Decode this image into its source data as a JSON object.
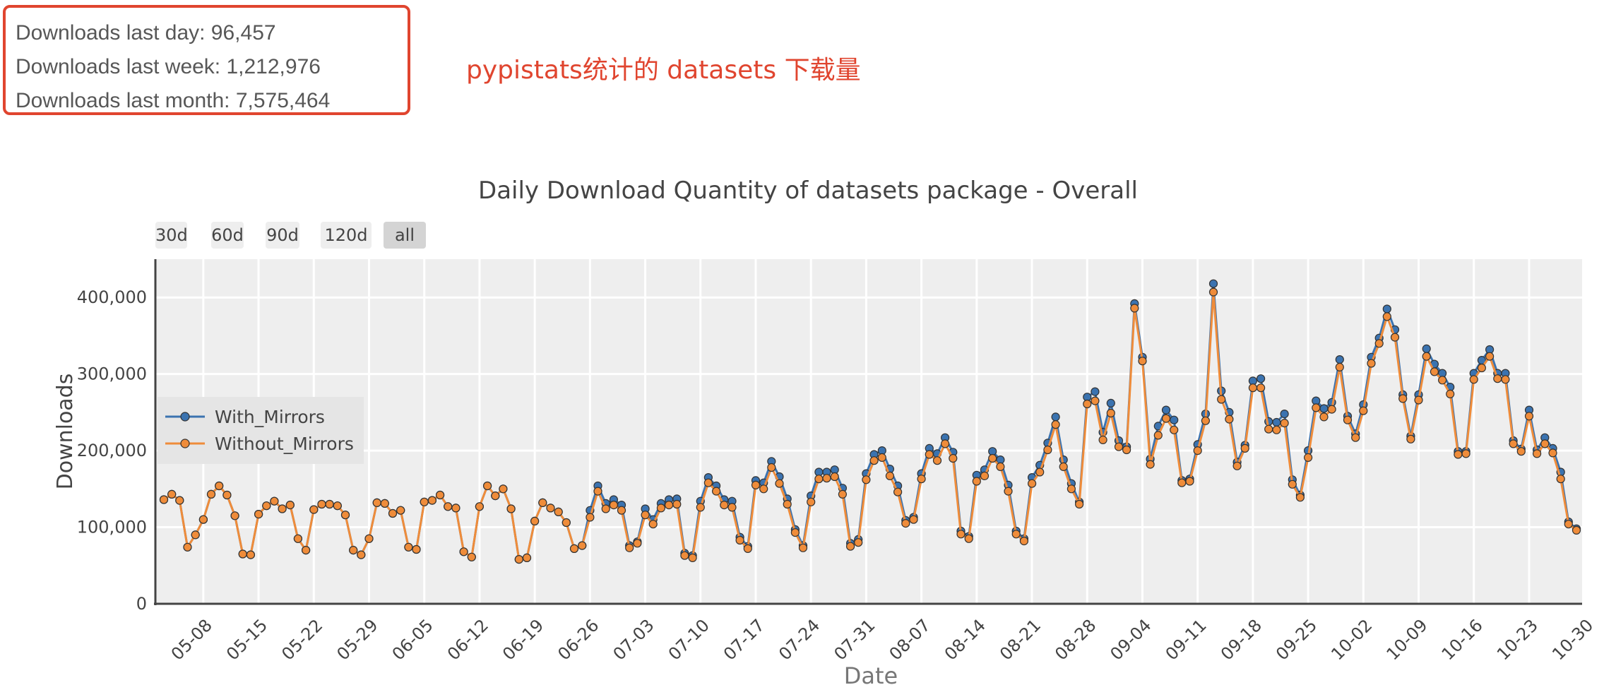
{
  "stats": {
    "day": "Downloads last day: 96,457",
    "week": "Downloads last week: 1,212,976",
    "month": "Downloads last month: 7,575,464"
  },
  "annotation": "pypistats统计的 datasets 下载量",
  "range_buttons": [
    "30d",
    "60d",
    "90d",
    "120d",
    "all"
  ],
  "active_range": "all",
  "colors": {
    "with_mirrors": "#3b73b0",
    "without_mirrors": "#ef8c3a",
    "plot_bg": "#eeeeee",
    "highlight": "#e0452f"
  },
  "chart_data": {
    "type": "line",
    "title": "Daily Download Quantity of datasets package - Overall",
    "xlabel": "Date",
    "ylabel": "Downloads",
    "x_start": "05-03",
    "x_end": "10-30",
    "x_tick_labels": [
      "05-08",
      "05-15",
      "05-22",
      "05-29",
      "06-05",
      "06-12",
      "06-19",
      "06-26",
      "07-03",
      "07-10",
      "07-17",
      "07-24",
      "07-31",
      "08-07",
      "08-14",
      "08-21",
      "08-28",
      "09-04",
      "09-11",
      "09-18",
      "09-25",
      "10-02",
      "10-09",
      "10-16",
      "10-23",
      "10-30"
    ],
    "y_tick_labels": [
      "0",
      "100,000",
      "200,000",
      "300,000",
      "400,000"
    ],
    "ylim": [
      0,
      450000
    ],
    "grid": true,
    "legend_position": "left",
    "series": [
      {
        "name": "With_Mirrors",
        "values": [
          136000,
          143000,
          135000,
          74000,
          90000,
          110000,
          143000,
          154000,
          142000,
          115000,
          65000,
          64000,
          117000,
          128000,
          134000,
          124000,
          129000,
          85000,
          70000,
          123000,
          130000,
          130000,
          128000,
          116000,
          70000,
          64000,
          85000,
          132000,
          131000,
          118000,
          122000,
          74000,
          71000,
          133000,
          135000,
          142000,
          127000,
          125000,
          68000,
          61000,
          127000,
          154000,
          141000,
          150000,
          124000,
          58000,
          60000,
          108000,
          132000,
          125000,
          120000,
          106000,
          72000,
          76000,
          122000,
          154000,
          131000,
          136000,
          129000,
          76000,
          81000,
          124000,
          110000,
          131000,
          136000,
          137000,
          66000,
          63000,
          134000,
          165000,
          154000,
          136000,
          134000,
          87000,
          75000,
          161000,
          158000,
          186000,
          166000,
          137000,
          97000,
          76000,
          141000,
          172000,
          172000,
          175000,
          151000,
          79000,
          84000,
          170000,
          195000,
          200000,
          176000,
          154000,
          109000,
          113000,
          170000,
          203000,
          196000,
          217000,
          198000,
          95000,
          88000,
          168000,
          175000,
          199000,
          188000,
          155000,
          95000,
          85000,
          165000,
          181000,
          210000,
          244000,
          188000,
          157000,
          133000,
          270000,
          277000,
          224000,
          262000,
          213000,
          205000,
          392000,
          322000,
          189000,
          232000,
          253000,
          240000,
          161000,
          163000,
          208000,
          248000,
          418000,
          278000,
          250000,
          185000,
          207000,
          291000,
          294000,
          238000,
          237000,
          248000,
          162000,
          142000,
          200000,
          265000,
          255000,
          263000,
          319000,
          245000,
          222000,
          260000,
          322000,
          347000,
          385000,
          358000,
          273000,
          219000,
          273000,
          333000,
          313000,
          301000,
          283000,
          199000,
          199000,
          301000,
          318000,
          332000,
          301000,
          301000,
          213000,
          202000,
          253000,
          201000,
          217000,
          203000,
          172000,
          107000,
          98000
        ],
        "color": "#3b73b0"
      },
      {
        "name": "Without_Mirrors",
        "values": [
          136000,
          143000,
          135000,
          74000,
          90000,
          110000,
          143000,
          154000,
          142000,
          115000,
          65000,
          64000,
          117000,
          128000,
          134000,
          124000,
          129000,
          85000,
          70000,
          123000,
          130000,
          130000,
          128000,
          116000,
          70000,
          64000,
          85000,
          132000,
          131000,
          118000,
          122000,
          74000,
          71000,
          133000,
          135000,
          142000,
          127000,
          125000,
          68000,
          61000,
          127000,
          154000,
          141000,
          150000,
          124000,
          58000,
          60000,
          108000,
          132000,
          125000,
          120000,
          106000,
          72000,
          76000,
          113000,
          147000,
          124000,
          129000,
          122000,
          73000,
          79000,
          116000,
          104000,
          125000,
          129000,
          130000,
          63000,
          60000,
          126000,
          158000,
          147000,
          129000,
          126000,
          83000,
          72000,
          155000,
          150000,
          178000,
          157000,
          130000,
          93000,
          73000,
          133000,
          163000,
          164000,
          166000,
          143000,
          75000,
          80000,
          162000,
          187000,
          191000,
          167000,
          146000,
          105000,
          110000,
          163000,
          195000,
          187000,
          209000,
          190000,
          91000,
          85000,
          160000,
          167000,
          190000,
          179000,
          147000,
          91000,
          82000,
          157000,
          172000,
          201000,
          234000,
          179000,
          150000,
          130000,
          261000,
          265000,
          214000,
          249000,
          205000,
          201000,
          386000,
          317000,
          182000,
          220000,
          242000,
          227000,
          158000,
          160000,
          200000,
          239000,
          407000,
          267000,
          241000,
          180000,
          203000,
          282000,
          282000,
          228000,
          227000,
          236000,
          156000,
          139000,
          191000,
          256000,
          244000,
          254000,
          309000,
          240000,
          217000,
          252000,
          314000,
          340000,
          375000,
          348000,
          268000,
          215000,
          266000,
          323000,
          303000,
          292000,
          274000,
          195000,
          196000,
          293000,
          308000,
          323000,
          294000,
          293000,
          209000,
          199000,
          245000,
          196000,
          209000,
          197000,
          163000,
          104000,
          96000
        ],
        "color": "#ef8c3a"
      }
    ]
  }
}
